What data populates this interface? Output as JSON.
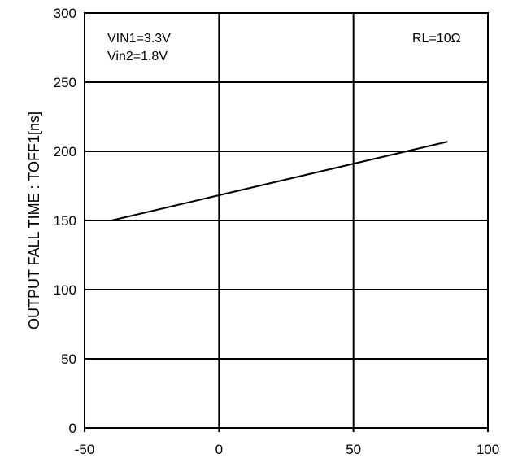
{
  "chart_data": {
    "type": "line",
    "title": "",
    "xlabel": "",
    "ylabel": "OUTPUT FALL TIME : TOFF1[ns]",
    "xlim": [
      -50,
      100
    ],
    "ylim": [
      0,
      300
    ],
    "x_ticks": [
      "-50",
      "0",
      "50",
      "100"
    ],
    "y_ticks": [
      "0",
      "50",
      "100",
      "150",
      "200",
      "250",
      "300"
    ],
    "grid": true,
    "series": [
      {
        "x": [
          -40,
          85
        ],
        "y": [
          150,
          207
        ],
        "color": "#000000"
      }
    ],
    "annotations": {
      "conditions": [
        "VIN1=3.3V",
        "Vin2=1.8V"
      ],
      "load": "RL=10Ω"
    }
  }
}
